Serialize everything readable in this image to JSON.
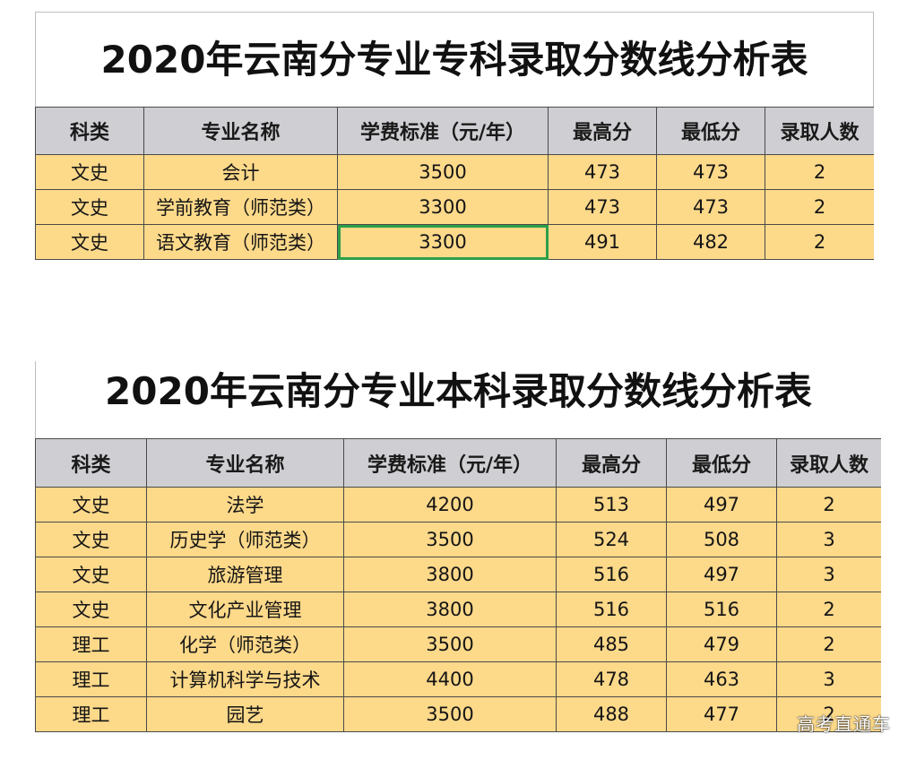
{
  "tables": [
    {
      "title": "2020年云南分专业专科录取分数线分析表",
      "headers": [
        "科类",
        "专业名称",
        "学费标准（元/年）",
        "最高分",
        "最低分",
        "录取人数"
      ],
      "rows": [
        [
          "文史",
          "会计",
          "3500",
          "473",
          "473",
          "2"
        ],
        [
          "文史",
          "学前教育（师范类）",
          "3300",
          "473",
          "473",
          "2"
        ],
        [
          "文史",
          "语文教育（师范类）",
          "3300",
          "491",
          "482",
          "2"
        ]
      ]
    },
    {
      "title": "2020年云南分专业本科录取分数线分析表",
      "headers": [
        "科类",
        "专业名称",
        "学费标准（元/年）",
        "最高分",
        "最低分",
        "录取人数"
      ],
      "rows": [
        [
          "文史",
          "法学",
          "4200",
          "513",
          "497",
          "2"
        ],
        [
          "文史",
          "历史学（师范类）",
          "3500",
          "524",
          "508",
          "3"
        ],
        [
          "文史",
          "旅游管理",
          "3800",
          "516",
          "497",
          "3"
        ],
        [
          "文史",
          "文化产业管理",
          "3800",
          "516",
          "516",
          "2"
        ],
        [
          "理工",
          "化学（师范类）",
          "3500",
          "485",
          "479",
          "2"
        ],
        [
          "理工",
          "计算机科学与技术",
          "4400",
          "478",
          "463",
          "3"
        ],
        [
          "理工",
          "园艺",
          "3500",
          "488",
          "477",
          "2"
        ]
      ]
    }
  ],
  "watermark": "高考直通车",
  "colors": {
    "header_bg": "#cfcfd3",
    "cell_bg": "#fdd98a",
    "selection_border": "#2e9e48"
  }
}
